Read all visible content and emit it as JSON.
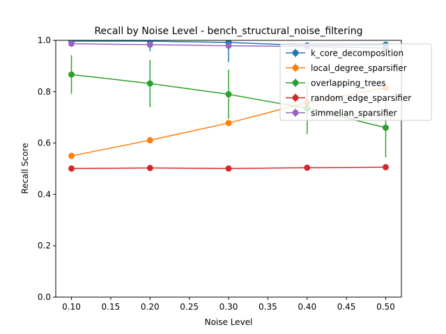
{
  "chart_data": {
    "type": "line",
    "title": "Recall by Noise Level - bench_structural_noise_filtering",
    "xlabel": "Noise Level",
    "ylabel": "Recall Score",
    "xlim": [
      0.08,
      0.52
    ],
    "ylim": [
      0.0,
      1.0
    ],
    "xticks": [
      "0.10",
      "0.15",
      "0.20",
      "0.25",
      "0.30",
      "0.35",
      "0.40",
      "0.45",
      "0.50"
    ],
    "yticks": [
      "0.0",
      "0.2",
      "0.4",
      "0.6",
      "0.8",
      "1.0"
    ],
    "x": [
      0.1,
      0.2,
      0.3,
      0.4,
      0.5
    ],
    "legend_position": "upper-right",
    "series": [
      {
        "name": "k_core_decomposition",
        "color": "#1f77b4",
        "values": [
          0.997,
          0.997,
          0.992,
          0.98,
          0.983
        ],
        "errors": [
          0.005,
          0.04,
          0.077,
          0.01,
          0.005
        ]
      },
      {
        "name": "local_degree_sparsifier",
        "color": "#ff7f0e",
        "values": [
          0.55,
          0.611,
          0.678,
          0.758,
          0.815
        ],
        "errors": [
          0.004,
          0.004,
          0.004,
          0.004,
          0.004
        ]
      },
      {
        "name": "overlapping_trees",
        "color": "#2ca02c",
        "values": [
          0.867,
          0.832,
          0.79,
          0.735,
          0.66
        ],
        "errors": [
          0.075,
          0.092,
          0.096,
          0.1,
          0.115
        ]
      },
      {
        "name": "random_edge_sparsifier",
        "color": "#d62728",
        "values": [
          0.501,
          0.503,
          0.501,
          0.504,
          0.506
        ],
        "errors": [
          0.004,
          0.004,
          0.004,
          0.006,
          0.01
        ]
      },
      {
        "name": "simmelian_sparsifier",
        "color": "#9467bd",
        "values": [
          0.987,
          0.983,
          0.979,
          0.976,
          0.97
        ],
        "errors": [
          0.006,
          0.006,
          0.006,
          0.006,
          0.006
        ]
      }
    ]
  }
}
